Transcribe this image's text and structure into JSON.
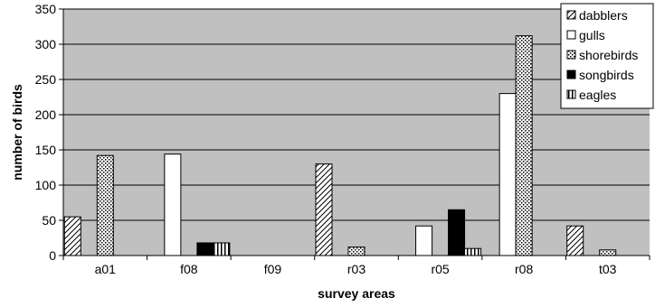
{
  "chart_data": {
    "type": "bar",
    "title": "",
    "xlabel": "survey areas",
    "ylabel": "number of birds",
    "categories": [
      "a01",
      "f08",
      "f09",
      "r03",
      "r05",
      "r08",
      "t03"
    ],
    "ylim": [
      0,
      350
    ],
    "yticks": [
      0,
      50,
      100,
      150,
      200,
      250,
      300,
      350
    ],
    "grid": true,
    "legend_position": "top-right",
    "plot_background": "#c0c0c0",
    "series": [
      {
        "name": "dabblers",
        "pattern": "diagonal-hatch",
        "values": [
          55,
          0,
          0,
          130,
          0,
          0,
          42
        ]
      },
      {
        "name": "gulls",
        "pattern": "white",
        "values": [
          0,
          144,
          0,
          0,
          42,
          230,
          0
        ]
      },
      {
        "name": "shorebirds",
        "pattern": "dots",
        "values": [
          142,
          0,
          0,
          12,
          0,
          312,
          8
        ]
      },
      {
        "name": "songbirds",
        "pattern": "solid-black",
        "values": [
          0,
          18,
          0,
          0,
          65,
          0,
          0
        ]
      },
      {
        "name": "eagles",
        "pattern": "vertical-stripes",
        "values": [
          0,
          18,
          0,
          0,
          10,
          0,
          0
        ]
      }
    ]
  }
}
